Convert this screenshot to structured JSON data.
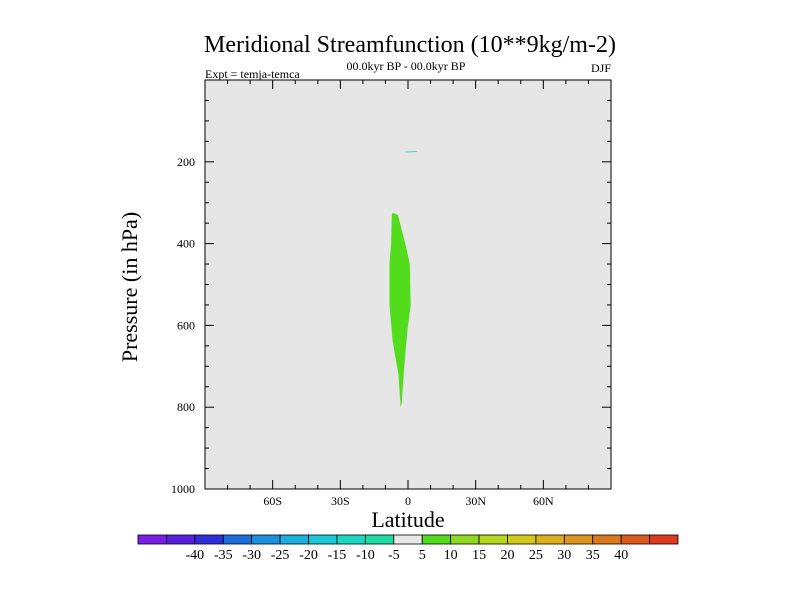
{
  "chart_data": {
    "type": "contour",
    "title": "Meridional Streamfunction (10**9kg/m-2)",
    "subtitle_left": "Expt = temja-temca",
    "subtitle_center": "00.0kyr BP - 00.0kyr BP",
    "subtitle_right": "DJF",
    "xlabel": "Latitude",
    "ylabel": "Pressure (in hPa)",
    "xlim": [
      -90,
      90
    ],
    "ylim": [
      1000,
      0
    ],
    "x_ticks": [
      {
        "value": -60,
        "label": "60S"
      },
      {
        "value": -30,
        "label": "30S"
      },
      {
        "value": 0,
        "label": "0"
      },
      {
        "value": 30,
        "label": "30N"
      },
      {
        "value": 60,
        "label": "60N"
      }
    ],
    "y_ticks": [
      {
        "value": 200,
        "label": "200"
      },
      {
        "value": 400,
        "label": "400"
      },
      {
        "value": 600,
        "label": "600"
      },
      {
        "value": 800,
        "label": "800"
      },
      {
        "value": 1000,
        "label": "1000"
      }
    ],
    "y_minor_step": 50,
    "x_minor_step": 10,
    "background_color": "#e6e6e6",
    "regions": [
      {
        "name": "positive-cell-5-to-10",
        "level": "5 to 10",
        "color": "#52dc1c",
        "polygon": [
          [
            -6.8,
            325
          ],
          [
            -4.5,
            330
          ],
          [
            -1.2,
            400
          ],
          [
            0.8,
            450
          ],
          [
            1.2,
            550
          ],
          [
            -0.2,
            610
          ],
          [
            -1.5,
            690
          ],
          [
            -2.8,
            790
          ],
          [
            -3.3,
            800
          ],
          [
            -4.2,
            720
          ],
          [
            -6.8,
            640
          ],
          [
            -8.2,
            550
          ],
          [
            -8.2,
            450
          ],
          [
            -7.5,
            400
          ],
          [
            -7.2,
            330
          ]
        ]
      },
      {
        "name": "negative-cell-minus5-to-minus10",
        "level": "-10 to -5",
        "color": "#1fd1b4",
        "polygon": [
          [
            -1.2,
            175
          ],
          [
            3.8,
            174
          ],
          [
            4.2,
            176
          ],
          [
            -1.2,
            177
          ]
        ]
      }
    ],
    "colorbar": {
      "colors": [
        "#7a1ee6",
        "#5a1ede",
        "#2e2edc",
        "#1c6ede",
        "#1c90de",
        "#1cb0de",
        "#1cc8d8",
        "#1cd7c0",
        "#1fdba4",
        "#e8e8e8",
        "#52dc1c",
        "#8ed91c",
        "#b4d61c",
        "#d2c81c",
        "#dcb01c",
        "#dc941c",
        "#dc781c",
        "#dc5a1c",
        "#dc3a1c"
      ],
      "labels": [
        "-40",
        "-35",
        "-30",
        "-25",
        "-20",
        "-15",
        "-10",
        "-5",
        "5",
        "10",
        "15",
        "20",
        "25",
        "30",
        "35",
        "40"
      ]
    }
  }
}
